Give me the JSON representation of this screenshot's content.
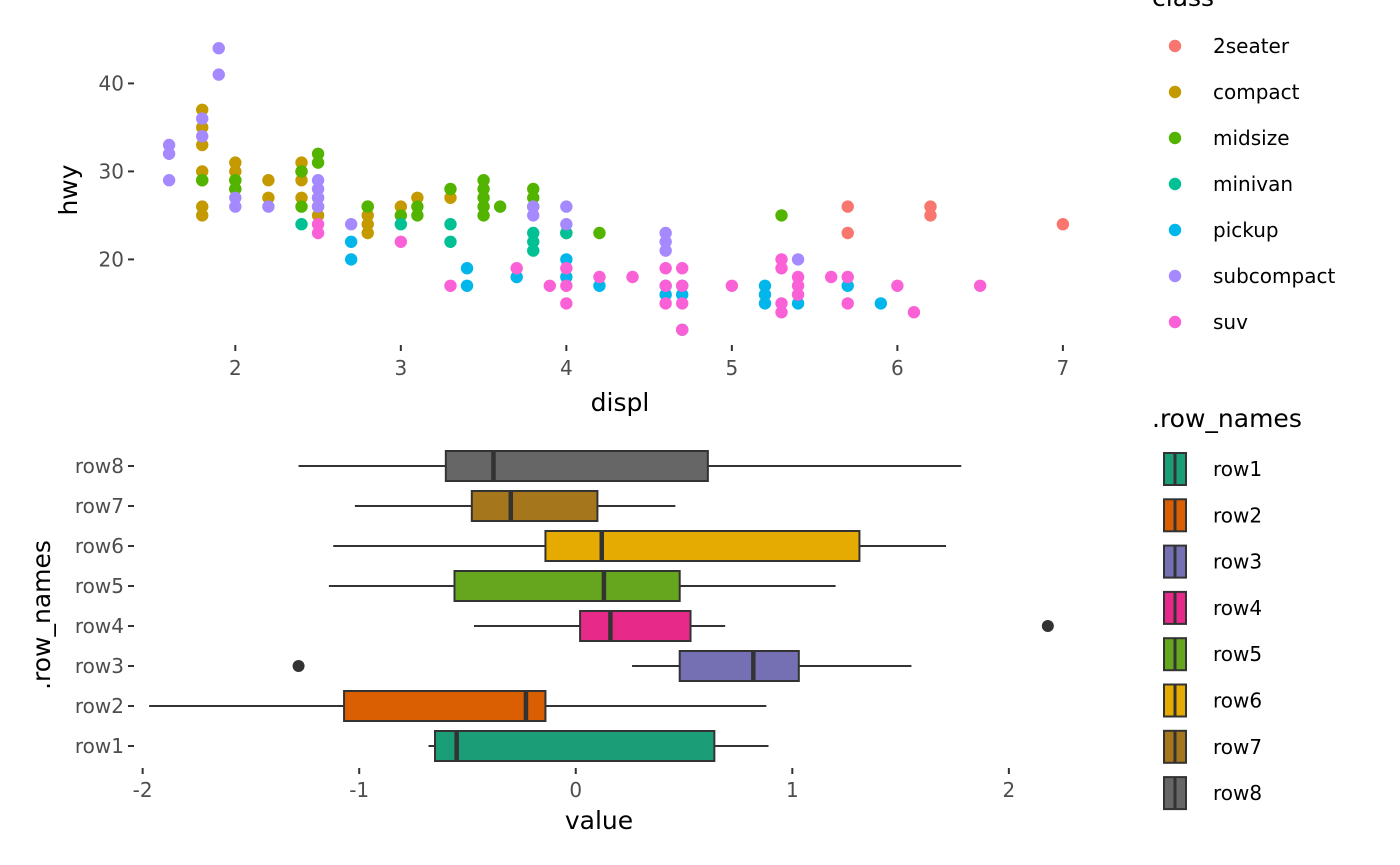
{
  "chart_data": [
    {
      "type": "scatter",
      "title": "",
      "xlabel": "displ",
      "ylabel": "hwy",
      "xlim": [
        1.4,
        7.2
      ],
      "ylim": [
        10.5,
        45.5
      ],
      "x_ticks": [
        "2",
        "3",
        "4",
        "5",
        "6",
        "7"
      ],
      "y_ticks": [
        "20",
        "30",
        "40"
      ],
      "grid": false,
      "legend": {
        "title": "class",
        "position": "right",
        "entries": [
          {
            "label": "2seater",
            "color": "#F8766D"
          },
          {
            "label": "compact",
            "color": "#C49A00"
          },
          {
            "label": "midsize",
            "color": "#53B400"
          },
          {
            "label": "minivan",
            "color": "#00C094"
          },
          {
            "label": "pickup",
            "color": "#00B6EB"
          },
          {
            "label": "subcompact",
            "color": "#A58AFF"
          },
          {
            "label": "suv",
            "color": "#FB61D7"
          }
        ]
      },
      "series": [
        {
          "name": "2seater",
          "points": [
            [
              5.7,
              26
            ],
            [
              5.7,
              23
            ],
            [
              6.2,
              26
            ],
            [
              6.2,
              25
            ],
            [
              7.0,
              24
            ]
          ]
        },
        {
          "name": "compact",
          "points": [
            [
              1.8,
              37
            ],
            [
              1.8,
              35
            ],
            [
              1.8,
              33
            ],
            [
              1.8,
              30
            ],
            [
              1.8,
              29
            ],
            [
              1.8,
              26
            ],
            [
              1.8,
              25
            ],
            [
              2.0,
              31
            ],
            [
              2.0,
              30
            ],
            [
              2.0,
              29
            ],
            [
              2.0,
              28
            ],
            [
              2.2,
              29
            ],
            [
              2.2,
              27
            ],
            [
              2.4,
              31
            ],
            [
              2.4,
              30
            ],
            [
              2.4,
              29
            ],
            [
              2.4,
              27
            ],
            [
              2.5,
              27
            ],
            [
              2.5,
              26
            ],
            [
              2.5,
              25
            ],
            [
              2.8,
              26
            ],
            [
              2.8,
              25
            ],
            [
              2.8,
              24
            ],
            [
              2.8,
              23
            ],
            [
              3.0,
              26
            ],
            [
              3.1,
              27
            ],
            [
              3.3,
              27
            ]
          ]
        },
        {
          "name": "midsize",
          "points": [
            [
              1.8,
              29
            ],
            [
              2.0,
              29
            ],
            [
              2.0,
              28
            ],
            [
              2.4,
              30
            ],
            [
              2.4,
              26
            ],
            [
              2.5,
              32
            ],
            [
              2.5,
              31
            ],
            [
              2.8,
              26
            ],
            [
              3.0,
              25
            ],
            [
              3.1,
              26
            ],
            [
              3.1,
              25
            ],
            [
              3.3,
              28
            ],
            [
              3.5,
              29
            ],
            [
              3.5,
              28
            ],
            [
              3.5,
              27
            ],
            [
              3.5,
              26
            ],
            [
              3.5,
              25
            ],
            [
              3.6,
              26
            ],
            [
              3.8,
              28
            ],
            [
              3.8,
              27
            ],
            [
              3.8,
              26
            ],
            [
              4.0,
              23
            ],
            [
              4.2,
              23
            ],
            [
              5.3,
              25
            ]
          ]
        },
        {
          "name": "minivan",
          "points": [
            [
              2.4,
              24
            ],
            [
              3.0,
              24
            ],
            [
              3.3,
              24
            ],
            [
              3.3,
              22
            ],
            [
              3.8,
              23
            ],
            [
              3.8,
              22
            ],
            [
              3.8,
              21
            ],
            [
              4.0,
              23
            ]
          ]
        },
        {
          "name": "pickup",
          "points": [
            [
              2.7,
              22
            ],
            [
              2.7,
              20
            ],
            [
              3.4,
              19
            ],
            [
              3.4,
              17
            ],
            [
              3.7,
              18
            ],
            [
              4.0,
              20
            ],
            [
              4.0,
              18
            ],
            [
              4.2,
              17
            ],
            [
              4.6,
              17
            ],
            [
              4.6,
              16
            ],
            [
              4.7,
              17
            ],
            [
              4.7,
              16
            ],
            [
              4.7,
              12
            ],
            [
              5.2,
              17
            ],
            [
              5.2,
              16
            ],
            [
              5.2,
              15
            ],
            [
              5.4,
              15
            ],
            [
              5.7,
              17
            ],
            [
              5.9,
              15
            ]
          ]
        },
        {
          "name": "subcompact",
          "points": [
            [
              1.6,
              33
            ],
            [
              1.6,
              32
            ],
            [
              1.6,
              29
            ],
            [
              1.8,
              36
            ],
            [
              1.8,
              34
            ],
            [
              1.9,
              44
            ],
            [
              1.9,
              41
            ],
            [
              2.0,
              27
            ],
            [
              2.0,
              26
            ],
            [
              2.2,
              26
            ],
            [
              2.5,
              29
            ],
            [
              2.5,
              28
            ],
            [
              2.5,
              27
            ],
            [
              2.5,
              26
            ],
            [
              2.7,
              24
            ],
            [
              3.8,
              26
            ],
            [
              3.8,
              25
            ],
            [
              4.0,
              26
            ],
            [
              4.0,
              24
            ],
            [
              4.6,
              23
            ],
            [
              4.6,
              22
            ],
            [
              4.6,
              21
            ],
            [
              5.4,
              20
            ]
          ]
        },
        {
          "name": "suv",
          "points": [
            [
              2.5,
              24
            ],
            [
              2.5,
              23
            ],
            [
              3.0,
              22
            ],
            [
              3.3,
              17
            ],
            [
              3.7,
              19
            ],
            [
              3.9,
              17
            ],
            [
              4.0,
              19
            ],
            [
              4.0,
              17
            ],
            [
              4.0,
              15
            ],
            [
              4.2,
              18
            ],
            [
              4.4,
              18
            ],
            [
              4.6,
              19
            ],
            [
              4.6,
              17
            ],
            [
              4.6,
              15
            ],
            [
              4.7,
              19
            ],
            [
              4.7,
              17
            ],
            [
              4.7,
              15
            ],
            [
              4.7,
              12
            ],
            [
              5.0,
              17
            ],
            [
              5.3,
              20
            ],
            [
              5.3,
              19
            ],
            [
              5.3,
              15
            ],
            [
              5.3,
              14
            ],
            [
              5.4,
              18
            ],
            [
              5.4,
              17
            ],
            [
              5.4,
              16
            ],
            [
              5.6,
              18
            ],
            [
              5.7,
              18
            ],
            [
              5.7,
              15
            ],
            [
              6.0,
              17
            ],
            [
              6.1,
              14
            ],
            [
              6.5,
              17
            ]
          ]
        }
      ]
    },
    {
      "type": "boxplot",
      "title": "",
      "xlabel": "value",
      "ylabel": ".row_names",
      "xlim": [
        -2.1,
        2.25
      ],
      "x_ticks": [
        "-2",
        "-1",
        "0",
        "1",
        "2"
      ],
      "categories": [
        "row1",
        "row2",
        "row3",
        "row4",
        "row5",
        "row6",
        "row7",
        "row8"
      ],
      "grid": false,
      "legend": {
        "title": ".row_names",
        "position": "right",
        "entries": [
          {
            "label": "row1",
            "color": "#1B9E77"
          },
          {
            "label": "row2",
            "color": "#D95F02"
          },
          {
            "label": "row3",
            "color": "#7570B3"
          },
          {
            "label": "row4",
            "color": "#E7298A"
          },
          {
            "label": "row5",
            "color": "#66A61E"
          },
          {
            "label": "row6",
            "color": "#E6AB02"
          },
          {
            "label": "row7",
            "color": "#A6761D"
          },
          {
            "label": "row8",
            "color": "#666666"
          }
        ]
      },
      "boxes": [
        {
          "name": "row1",
          "whisker_low": -0.68,
          "q1": -0.65,
          "median": -0.55,
          "q3": 0.64,
          "whisker_high": 0.89,
          "outliers": []
        },
        {
          "name": "row2",
          "whisker_low": -1.97,
          "q1": -1.07,
          "median": -0.23,
          "q3": -0.14,
          "whisker_high": 0.88,
          "outliers": []
        },
        {
          "name": "row3",
          "whisker_low": 0.26,
          "q1": 0.48,
          "median": 0.82,
          "q3": 1.03,
          "whisker_high": 1.55,
          "outliers": [
            -1.28
          ]
        },
        {
          "name": "row4",
          "whisker_low": -0.47,
          "q1": 0.02,
          "median": 0.16,
          "q3": 0.53,
          "whisker_high": 0.69,
          "outliers": [
            2.18
          ]
        },
        {
          "name": "row5",
          "whisker_low": -1.14,
          "q1": -0.56,
          "median": 0.13,
          "q3": 0.48,
          "whisker_high": 1.2,
          "outliers": []
        },
        {
          "name": "row6",
          "whisker_low": -1.12,
          "q1": -0.14,
          "median": 0.12,
          "q3": 1.31,
          "whisker_high": 1.71,
          "outliers": []
        },
        {
          "name": "row7",
          "whisker_low": -1.02,
          "q1": -0.48,
          "median": -0.3,
          "q3": 0.1,
          "whisker_high": 0.46,
          "outliers": []
        },
        {
          "name": "row8",
          "whisker_low": -1.28,
          "q1": -0.6,
          "median": -0.38,
          "q3": 0.61,
          "whisker_high": 1.78,
          "outliers": []
        }
      ]
    }
  ]
}
